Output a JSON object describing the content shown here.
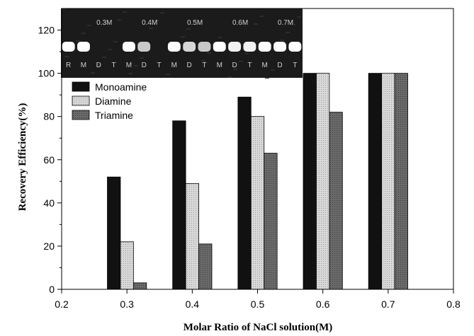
{
  "chart_data": {
    "type": "bar",
    "xlabel": "Molar Ratio of NaCl solution(M)",
    "ylabel": "Recovery Efficiency(%)",
    "xlim": [
      0.2,
      0.8
    ],
    "ylim": [
      0,
      130
    ],
    "x_ticks": [
      "0.2",
      "0.3",
      "0.4",
      "0.5",
      "0.6",
      "0.7",
      "0.8"
    ],
    "y_ticks": [
      "0",
      "20",
      "40",
      "60",
      "80",
      "100",
      "120"
    ],
    "categories": [
      0.3,
      0.4,
      0.5,
      0.6,
      0.7
    ],
    "series": [
      {
        "name": "Monoamine",
        "values": [
          52,
          78,
          89,
          100,
          100
        ],
        "color": "#111111"
      },
      {
        "name": "Diamine",
        "values": [
          22,
          49,
          80,
          100,
          100
        ],
        "color": "#cfcfcf"
      },
      {
        "name": "Triamine",
        "values": [
          3,
          21,
          63,
          82,
          100
        ],
        "color": "#666666"
      }
    ],
    "legend": "upper-left",
    "grid": false,
    "inset": {
      "type": "gel image",
      "concentration_labels": [
        "0.3M",
        "0.4M",
        "0.5M",
        "0.6M",
        "0.7M"
      ],
      "lane_labels": [
        "R",
        "M",
        "D",
        "T",
        "M",
        "D",
        "T",
        "M",
        "D",
        "T",
        "M",
        "D",
        "T",
        "M",
        "D",
        "T"
      ]
    }
  }
}
